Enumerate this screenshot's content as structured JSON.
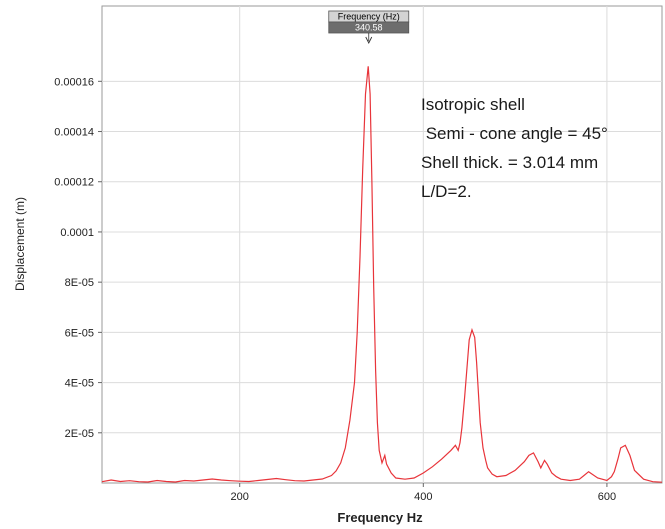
{
  "chart_data": {
    "type": "line",
    "title": "",
    "xlabel": "Frequency Hz",
    "ylabel": "Displacement (m)",
    "xlim": [
      50,
      660
    ],
    "ylim": [
      0,
      0.00019
    ],
    "x_ticks": [
      200,
      400,
      600
    ],
    "x_tick_labels": [
      "200",
      "400",
      "600"
    ],
    "y_ticks": [
      2e-05,
      4e-05,
      6e-05,
      8e-05,
      0.0001,
      0.00012,
      0.00014,
      0.00016
    ],
    "y_tick_labels": [
      "2E-05",
      "4E-05",
      "6E-05",
      "8E-05",
      "0.0001",
      "0.00012",
      "0.00014",
      "0.00016"
    ],
    "grid": true,
    "line_color": "#e8343a",
    "series": [
      {
        "x": [
          50,
          60,
          70,
          80,
          90,
          100,
          110,
          120,
          130,
          140,
          150,
          160,
          170,
          180,
          190,
          200,
          210,
          220,
          230,
          240,
          250,
          260,
          270,
          280,
          290,
          300,
          305,
          310,
          315,
          320,
          325,
          328,
          331,
          334,
          337,
          340,
          342,
          344,
          346,
          348,
          350,
          352,
          355,
          358,
          360,
          365,
          370,
          380,
          390,
          400,
          410,
          420,
          430,
          435,
          438,
          440,
          442,
          445,
          448,
          450,
          453,
          456,
          458,
          460,
          462,
          465,
          468,
          470,
          475,
          480,
          490,
          500,
          510,
          515,
          520,
          525,
          528,
          532,
          535,
          540,
          545,
          550,
          560,
          570,
          575,
          580,
          590,
          600,
          605,
          608,
          612,
          615,
          620,
          625,
          630,
          640,
          650,
          660
        ],
        "y": [
          5e-07,
          1.2e-06,
          6e-07,
          9e-07,
          5e-07,
          4e-07,
          1e-06,
          6e-07,
          4e-07,
          1e-06,
          8e-07,
          1.2e-06,
          1.6e-06,
          1.2e-06,
          9e-07,
          7e-07,
          6e-07,
          1e-06,
          1.4e-06,
          1.8e-06,
          1.3e-06,
          9e-07,
          8e-07,
          1.2e-06,
          1.6e-06,
          3e-06,
          4.8e-06,
          8e-06,
          1.4e-05,
          2.5e-05,
          4e-05,
          6e-05,
          9e-05,
          0.000125,
          0.000155,
          0.000166,
          0.000155,
          0.00012,
          7.8e-05,
          4.5e-05,
          2.4e-05,
          1.3e-05,
          8e-06,
          1.1e-05,
          7.5e-06,
          4e-06,
          2e-06,
          1.5e-06,
          2e-06,
          4e-06,
          6.5e-06,
          9.5e-06,
          1.3e-05,
          1.5e-05,
          1.3e-05,
          1.6e-05,
          2.2e-05,
          3.4e-05,
          4.8e-05,
          5.7e-05,
          6.1e-05,
          5.8e-05,
          4.8e-05,
          3.6e-05,
          2.4e-05,
          1.4e-05,
          9e-06,
          6e-06,
          3.5e-06,
          2.5e-06,
          3e-06,
          5e-06,
          8.5e-06,
          1.1e-05,
          1.2e-05,
          8.5e-06,
          6e-06,
          9e-06,
          7.5e-06,
          4e-06,
          2.5e-06,
          1.5e-06,
          1e-06,
          1.5e-06,
          3e-06,
          4.5e-06,
          2e-06,
          1e-06,
          2.5e-06,
          4.5e-06,
          9.5e-06,
          1.4e-05,
          1.5e-05,
          1.1e-05,
          5e-06,
          1.5e-06,
          5e-07,
          3e-07
        ]
      }
    ]
  },
  "marker": {
    "title": "Frequency (Hz)",
    "value": "340.58",
    "x": 340.58
  },
  "annotation": {
    "lines": [
      "Isotropic shell",
      " Semi - cone angle = 45°",
      "Shell thick. = 3.014 mm",
      "L/D=2."
    ]
  }
}
